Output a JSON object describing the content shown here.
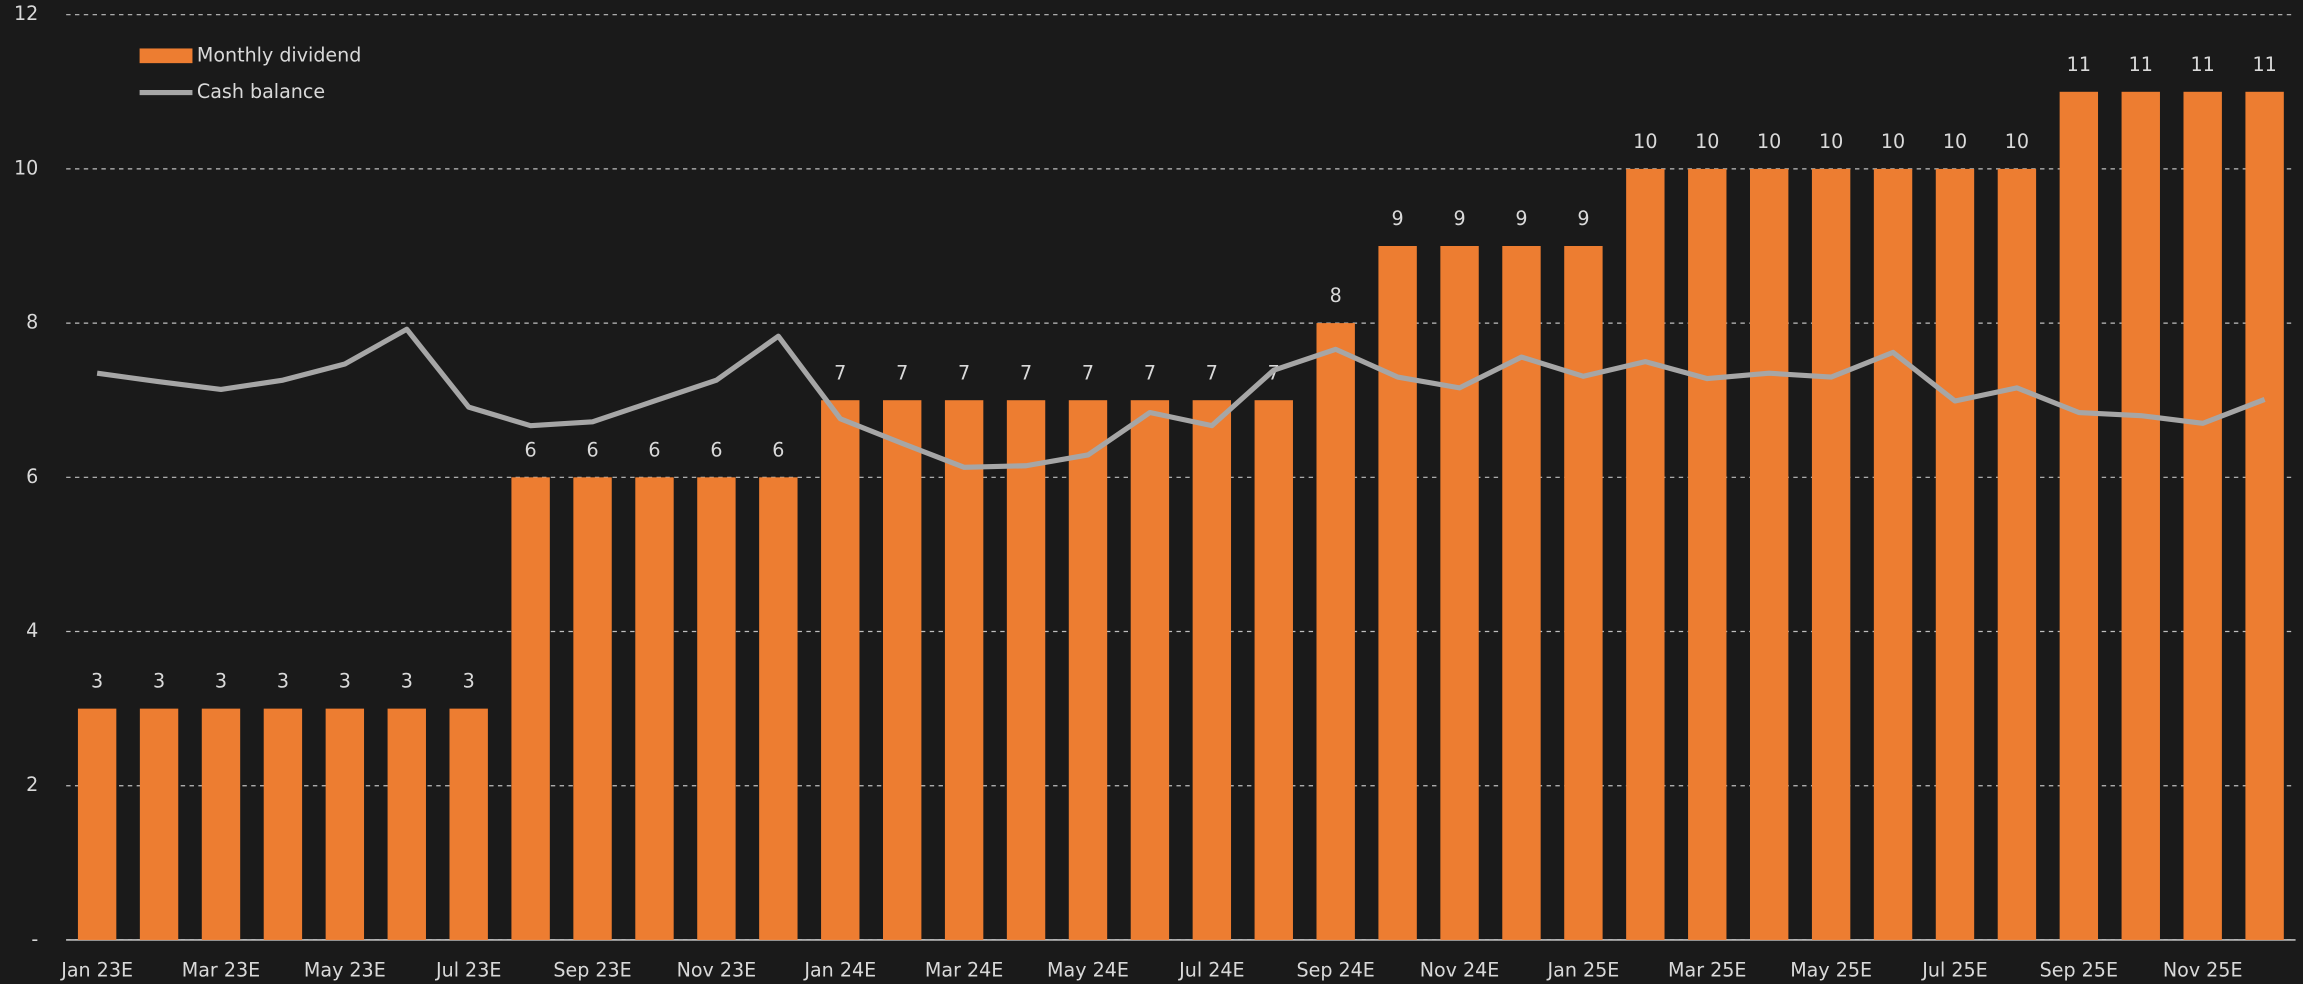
{
  "chart_data": {
    "type": "bar",
    "categories": [
      "Jan 23E",
      null,
      "Mar 23E",
      null,
      "May 23E",
      null,
      "Jul 23E",
      null,
      "Sep 23E",
      null,
      "Nov 23E",
      null,
      "Jan 24E",
      null,
      "Mar 24E",
      null,
      "May 24E",
      null,
      "Jul 24E",
      null,
      "Sep 24E",
      null,
      "Nov 24E",
      null,
      "Jan 25E",
      null,
      "Mar 25E",
      null,
      "May 25E",
      null,
      "Jul 25E",
      null,
      "Sep 25E",
      null,
      "Nov 25E",
      null
    ],
    "series": [
      {
        "name": "Monthly dividend",
        "type": "bar",
        "color": "#ed7d31",
        "values": [
          3,
          3,
          3,
          3,
          3,
          3,
          3,
          6,
          6,
          6,
          6,
          6,
          7,
          7,
          7,
          7,
          7,
          7,
          7,
          7,
          8,
          9,
          9,
          9,
          9,
          10,
          10,
          10,
          10,
          10,
          10,
          10,
          11,
          11,
          11,
          11
        ]
      },
      {
        "name": "Cash balance",
        "type": "line",
        "color": "#a6a6a6",
        "values": [
          7.35,
          7.24,
          7.14,
          7.26,
          7.47,
          7.92,
          6.91,
          6.67,
          6.72,
          6.99,
          7.26,
          7.83,
          6.76,
          6.44,
          6.13,
          6.15,
          6.29,
          6.84,
          6.67,
          7.39,
          7.66,
          7.3,
          7.16,
          7.56,
          7.31,
          7.5,
          7.28,
          7.35,
          7.3,
          7.62,
          6.99,
          7.16,
          6.84,
          6.8,
          6.7,
          7.01
        ]
      }
    ],
    "ylim": [
      0,
      12
    ],
    "yticks": [
      {
        "value": 0,
        "label": "-"
      },
      2,
      4,
      6,
      8,
      10,
      12
    ],
    "grid": true,
    "legend": "upper left"
  }
}
